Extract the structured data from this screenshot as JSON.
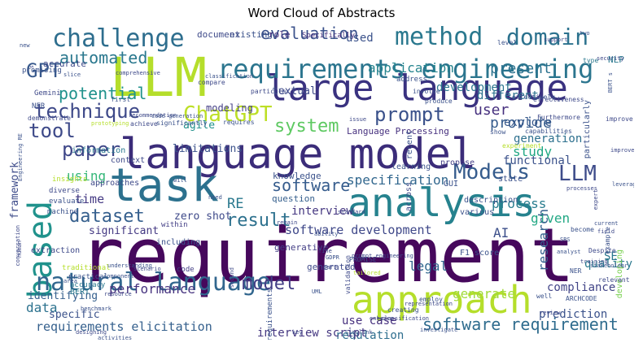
{
  "chart_data": {
    "type": "wordcloud",
    "title": "Word Cloud of Abstracts",
    "words": [
      {
        "text": "requirement",
        "color": "#46085c"
      },
      {
        "text": "language model",
        "color": "#3b2c79"
      },
      {
        "text": "large language",
        "color": "#3a3280"
      },
      {
        "text": "LLM",
        "color": "#b5de2b"
      },
      {
        "text": "task",
        "color": "#2c718e"
      },
      {
        "text": "analysis",
        "color": "#26828e"
      },
      {
        "text": "approach",
        "color": "#b5de2b"
      },
      {
        "text": "based",
        "color": "#20928c"
      },
      {
        "text": "requirements engineering",
        "color": "#2b758e"
      },
      {
        "text": "natural language",
        "color": "#31668e"
      },
      {
        "text": "challenge",
        "color": "#2e6e8e"
      },
      {
        "text": "method",
        "color": "#2a788e"
      },
      {
        "text": "domain",
        "color": "#2c728e"
      },
      {
        "text": "technique",
        "color": "#3e4989"
      },
      {
        "text": "ChatGPT",
        "color": "#bddf26"
      },
      {
        "text": "system",
        "color": "#5ec962"
      },
      {
        "text": "prompt",
        "color": "#3b528b"
      },
      {
        "text": "tool",
        "color": "#3e4a89"
      },
      {
        "text": "paper",
        "color": "#3f4788"
      },
      {
        "text": "Models",
        "color": "#365c8d"
      },
      {
        "text": "LLM",
        "color": "#3e4c8a"
      },
      {
        "text": "dataset",
        "color": "#355f8d"
      },
      {
        "text": "result",
        "color": "#2d718e"
      },
      {
        "text": "model",
        "color": "#433e85"
      },
      {
        "text": "software",
        "color": "#365c8d"
      },
      {
        "text": "software requirement",
        "color": "#2f6c8e"
      },
      {
        "text": "requirements elicitation",
        "color": "#35608d"
      },
      {
        "text": "GPT",
        "color": "#38598c"
      },
      {
        "text": "automated",
        "color": "#2a788e"
      },
      {
        "text": "evaluation",
        "color": "#3b528b"
      },
      {
        "text": "application",
        "color": "#25848e"
      },
      {
        "text": "potential",
        "color": "#20928c"
      },
      {
        "text": "present",
        "color": "#2c728e"
      },
      {
        "text": "user",
        "color": "#46307e"
      },
      {
        "text": "provide",
        "color": "#365c8d"
      },
      {
        "text": "study",
        "color": "#22a884"
      },
      {
        "text": "specification",
        "color": "#31678e"
      },
      {
        "text": "using",
        "color": "#35b779"
      },
      {
        "text": "time",
        "color": "#443983"
      },
      {
        "text": "process",
        "color": "#287c8e"
      },
      {
        "text": "given",
        "color": "#22a884"
      },
      {
        "text": "framework",
        "color": "#3e4c8a"
      },
      {
        "text": "RE",
        "color": "#2a788e"
      },
      {
        "text": "software development",
        "color": "#3f4889"
      },
      {
        "text": "research",
        "color": "#35608d"
      },
      {
        "text": "AI",
        "color": "#3c4f8a"
      },
      {
        "text": "performance",
        "color": "#46337f"
      },
      {
        "text": "legal",
        "color": "#31668e"
      },
      {
        "text": "data",
        "color": "#2c728e"
      },
      {
        "text": "generate",
        "color": "#a0da39"
      },
      {
        "text": "use case",
        "color": "#46307e"
      },
      {
        "text": "regulation",
        "color": "#2e6e8e"
      },
      {
        "text": "interview script",
        "color": "#453781"
      },
      {
        "text": "compliance",
        "color": "#414487"
      },
      {
        "text": "prediction",
        "color": "#3b528b"
      },
      {
        "text": "quality",
        "color": "#2a788e"
      },
      {
        "text": "SE",
        "color": "#2a788e"
      },
      {
        "text": "developing",
        "color": "#7ad151"
      },
      {
        "text": "generation",
        "color": "#2d708e"
      },
      {
        "text": "functional",
        "color": "#3b528b"
      },
      {
        "text": "explore",
        "color": "#38598c"
      },
      {
        "text": "different",
        "color": "#2c728e"
      },
      {
        "text": "development",
        "color": "#2b758e"
      },
      {
        "text": "used",
        "color": "#3b528b"
      },
      {
        "text": "interview",
        "color": "#453781"
      },
      {
        "text": "zero shot",
        "color": "#3e4989"
      },
      {
        "text": "limitations",
        "color": "#3b528b"
      },
      {
        "text": "question",
        "color": "#355f8d"
      },
      {
        "text": "knowledge",
        "color": "#3b528b"
      },
      {
        "text": "textual",
        "color": "#3e4a89"
      },
      {
        "text": "modeling",
        "color": "#433e85"
      },
      {
        "text": "agile",
        "color": "#21918c"
      },
      {
        "text": "existing",
        "color": "#3b528b"
      },
      {
        "text": "document",
        "color": "#3e4a89"
      },
      {
        "text": "role",
        "color": "#46307e"
      },
      {
        "text": "significant",
        "color": "#443983"
      },
      {
        "text": "identifying",
        "color": "#355f8d"
      },
      {
        "text": "specific",
        "color": "#3b528b"
      },
      {
        "text": "context",
        "color": "#3e4989"
      },
      {
        "text": "information",
        "color": "#2a788e"
      },
      {
        "text": "accurate",
        "color": "#3e4989"
      },
      {
        "text": "Specifically",
        "color": "#46307e"
      },
      {
        "text": "NLP",
        "color": "#2a788e"
      },
      {
        "text": "Language Processing",
        "color": "#46307e"
      },
      {
        "text": "generative",
        "color": "#433e85"
      },
      {
        "text": "F1 score",
        "color": "#3b528b"
      },
      {
        "text": "description",
        "color": "#3b528b"
      },
      {
        "text": "various",
        "color": "#3b528b"
      },
      {
        "text": "state",
        "color": "#3b528b"
      },
      {
        "text": "code",
        "color": "#433e85"
      },
      {
        "text": "NL requirements",
        "color": "#3b528b"
      },
      {
        "text": "generated",
        "color": "#3e4989"
      },
      {
        "text": "BERT",
        "color": "#2a788e"
      },
      {
        "text": "practical",
        "color": "#3b528b"
      },
      {
        "text": "accuracy",
        "color": "#2a788e"
      },
      {
        "text": "approaches",
        "color": "#3e4989"
      },
      {
        "text": "including",
        "color": "#3b528b"
      },
      {
        "text": "within",
        "color": "#433e85"
      },
      {
        "text": "learning",
        "color": "#3b528b"
      },
      {
        "text": "across",
        "color": "#3e4989"
      },
      {
        "text": "recent",
        "color": "#3b528b"
      },
      {
        "text": "propose",
        "color": "#433e85"
      },
      {
        "text": "GUI",
        "color": "#3b528b"
      },
      {
        "text": "insights",
        "color": "#b5de2b"
      },
      {
        "text": "diverse",
        "color": "#3e4989"
      },
      {
        "text": "evaluate",
        "color": "#3b528b"
      },
      {
        "text": "machine",
        "color": "#3b528b"
      },
      {
        "text": "extraction",
        "color": "#3e4989"
      },
      {
        "text": "traditional",
        "color": "#b5de2b"
      },
      {
        "text": "promising",
        "color": "#3b528b"
      },
      {
        "text": "comprehensive",
        "color": "#3e4989"
      },
      {
        "text": "address",
        "color": "#3b528b"
      },
      {
        "text": "involve",
        "color": "#3b528b"
      },
      {
        "text": "produce",
        "color": "#3b528b"
      },
      {
        "text": "Gemini",
        "color": "#3e4989"
      },
      {
        "text": "NFR",
        "color": "#3b528b"
      },
      {
        "text": "demonstrate",
        "color": "#3e4989"
      },
      {
        "text": "Engineering RE",
        "color": "#3b528b"
      },
      {
        "text": "first",
        "color": "#3b528b"
      },
      {
        "text": "achieve",
        "color": "#3e4989"
      },
      {
        "text": "significantly",
        "color": "#3b528b"
      },
      {
        "text": "requires",
        "color": "#3b528b"
      },
      {
        "text": "particular",
        "color": "#3e4989"
      },
      {
        "text": "classification",
        "color": "#3b528b"
      },
      {
        "text": "compare",
        "color": "#3e4989"
      },
      {
        "text": "effectively",
        "color": "#3b528b"
      },
      {
        "text": "effectiveness",
        "color": "#3e4989"
      },
      {
        "text": "level",
        "color": "#3b528b"
      },
      {
        "text": "support",
        "color": "#3e4989"
      },
      {
        "text": "two",
        "color": "#3b528b"
      },
      {
        "text": "type",
        "color": "#2a788e"
      },
      {
        "text": "particularly",
        "color": "#3b528b"
      },
      {
        "text": "improve",
        "color": "#3e4989"
      },
      {
        "text": "capabilities",
        "color": "#3b528b"
      },
      {
        "text": "Furthermore",
        "color": "#3e4989"
      },
      {
        "text": "experiment",
        "color": "#b5de2b"
      },
      {
        "text": "show",
        "color": "#3b528b"
      },
      {
        "text": "improvement",
        "color": "#3e4989"
      },
      {
        "text": "leveraging",
        "color": "#3b528b"
      },
      {
        "text": "expert",
        "color": "#3e4989"
      },
      {
        "text": "become",
        "color": "#3b528b"
      },
      {
        "text": "field",
        "color": "#3e4989"
      },
      {
        "text": "example",
        "color": "#3b528b"
      },
      {
        "text": "Despite",
        "color": "#3e4989"
      },
      {
        "text": "stakeholder",
        "color": "#3b528b"
      },
      {
        "text": "NER",
        "color": "#3b528b"
      },
      {
        "text": "relevant",
        "color": "#3e4989"
      },
      {
        "text": "analyst",
        "color": "#3b528b"
      },
      {
        "text": "training",
        "color": "#3e4989"
      },
      {
        "text": "well",
        "color": "#3b528b"
      },
      {
        "text": "review",
        "color": "#3e4989"
      },
      {
        "text": "ARCHCODE",
        "color": "#3b528b"
      },
      {
        "text": "tailored",
        "color": "#b5de2b"
      },
      {
        "text": "PROMISE",
        "color": "#3b528b"
      },
      {
        "text": "validation",
        "color": "#3e4989"
      },
      {
        "text": "investigate",
        "color": "#3b528b"
      },
      {
        "text": "classification",
        "color": "#3e4989"
      },
      {
        "text": "employ",
        "color": "#3b528b"
      },
      {
        "text": "representation",
        "color": "#3e4989"
      },
      {
        "text": "creating",
        "color": "#3b528b"
      },
      {
        "text": "enhance",
        "color": "#3e4989"
      },
      {
        "text": "Simulink",
        "color": "#3b528b"
      },
      {
        "text": "key",
        "color": "#3e4989"
      },
      {
        "text": "understanding",
        "color": "#3b528b"
      },
      {
        "text": "scenario",
        "color": "#3e4989"
      },
      {
        "text": "component",
        "color": "#3b528b"
      },
      {
        "text": "resource",
        "color": "#3e4989"
      },
      {
        "text": "benchmark",
        "color": "#3b528b"
      },
      {
        "text": "designing",
        "color": "#3e4989"
      },
      {
        "text": "activities",
        "color": "#3b528b"
      },
      {
        "text": "standard",
        "color": "#3e4989"
      },
      {
        "text": "need",
        "color": "#3b528b"
      },
      {
        "text": "remain",
        "color": "#3e4989"
      },
      {
        "text": "ability",
        "color": "#3b528b"
      },
      {
        "text": "fine",
        "color": "#3e4989"
      },
      {
        "text": "GDPR",
        "color": "#3b528b"
      },
      {
        "text": "part",
        "color": "#3e4989"
      },
      {
        "text": "will",
        "color": "#3b528b"
      },
      {
        "text": "processes",
        "color": "#3e4989"
      },
      {
        "text": "current",
        "color": "#3b528b"
      },
      {
        "text": "issue",
        "color": "#3e4989"
      },
      {
        "text": "slice",
        "color": "#3b528b"
      },
      {
        "text": "prototyping",
        "color": "#b5de2b"
      },
      {
        "text": "recommendation",
        "color": "#3e4989"
      },
      {
        "text": "code generation",
        "color": "#3b528b"
      },
      {
        "text": "security",
        "color": "#3e4989"
      },
      {
        "text": "BERT s",
        "color": "#3b528b"
      },
      {
        "text": "prompt engineering",
        "color": "#3e4989"
      },
      {
        "text": "UML",
        "color": "#3b528b"
      },
      {
        "text": "second",
        "color": "#3e4989"
      },
      {
        "text": "SRS",
        "color": "#3b528b"
      },
      {
        "text": "human",
        "color": "#3e4989"
      },
      {
        "text": "new",
        "color": "#3b528b"
      },
      {
        "text": "s",
        "color": "#3e4989"
      },
      {
        "text": "area",
        "color": "#3b528b"
      },
      {
        "text": "conversation",
        "color": "#3e4989"
      }
    ]
  }
}
